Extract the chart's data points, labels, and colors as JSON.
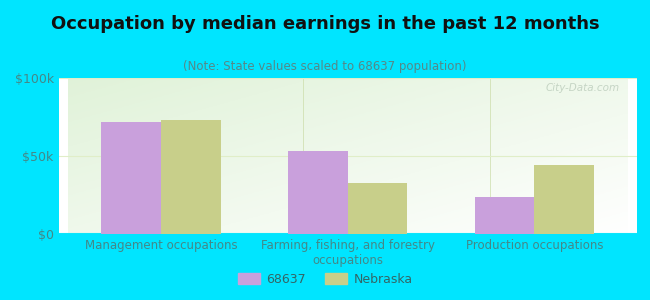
{
  "title": "Occupation by median earnings in the past 12 months",
  "subtitle": "(Note: State values scaled to 68637 population)",
  "categories": [
    "Management occupations",
    "Farming, fishing, and forestry\noccupations",
    "Production occupations"
  ],
  "values_68637": [
    72000,
    53000,
    24000
  ],
  "values_nebraska": [
    73000,
    33000,
    44000
  ],
  "color_68637": "#c9a0dc",
  "color_nebraska": "#c8cf8a",
  "ylim": [
    0,
    100000
  ],
  "yticks": [
    0,
    50000,
    100000
  ],
  "ytick_labels": [
    "$0",
    "$50k",
    "$100k"
  ],
  "bg_outer": "#00e5ff",
  "bg_plot_topleft": "#e8f5e0",
  "bg_plot_topright": "#f8fef5",
  "bg_plot_bottom": "#f0f8e8",
  "grid_color": "#e0eec8",
  "bar_width": 0.32,
  "legend_label_68637": "68637",
  "legend_label_nebraska": "Nebraska",
  "watermark": "City-Data.com",
  "title_color": "#111111",
  "subtitle_color": "#558888",
  "tick_color": "#448888",
  "title_fontsize": 13,
  "subtitle_fontsize": 8.5,
  "tick_fontsize": 9,
  "xtick_fontsize": 8.5
}
